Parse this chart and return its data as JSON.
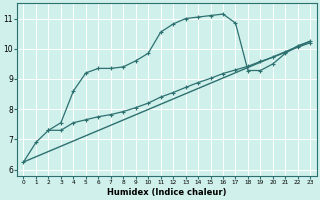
{
  "bg_color": "#cff0eb",
  "line_color": "#2d7070",
  "grid_color": "#ffffff",
  "xlabel": "Humidex (Indice chaleur)",
  "ylim": [
    5.8,
    11.5
  ],
  "xlim": [
    -0.5,
    23.5
  ],
  "yticks": [
    6,
    7,
    8,
    9,
    10,
    11
  ],
  "xticks": [
    0,
    1,
    2,
    3,
    4,
    5,
    6,
    7,
    8,
    9,
    10,
    11,
    12,
    13,
    14,
    15,
    16,
    17,
    18,
    19,
    20,
    21,
    22,
    23
  ],
  "curve1_x": [
    0,
    1,
    2,
    3,
    4,
    5,
    6,
    7,
    8,
    9,
    10,
    11,
    12,
    13,
    14,
    15,
    16,
    17,
    18,
    19,
    20,
    21,
    22,
    23
  ],
  "curve1_y": [
    6.25,
    6.9,
    7.3,
    7.55,
    8.6,
    9.2,
    9.35,
    9.35,
    9.4,
    9.6,
    9.85,
    10.55,
    10.82,
    11.0,
    11.05,
    11.1,
    11.15,
    10.85,
    9.28,
    9.28,
    9.5,
    9.85,
    10.1,
    10.25
  ],
  "curve2_x": [
    2,
    3,
    4,
    5,
    6,
    7,
    8,
    9,
    10,
    11,
    12,
    13,
    14,
    15,
    16,
    17,
    18,
    19,
    20,
    21,
    22,
    23
  ],
  "curve2_y": [
    7.3,
    7.3,
    7.55,
    7.65,
    7.75,
    7.82,
    7.92,
    8.05,
    8.2,
    8.4,
    8.55,
    8.72,
    8.88,
    9.02,
    9.18,
    9.3,
    9.42,
    9.58,
    9.72,
    9.88,
    10.05,
    10.2
  ],
  "curve3_x": [
    0,
    23
  ],
  "curve3_y": [
    6.25,
    10.25
  ]
}
